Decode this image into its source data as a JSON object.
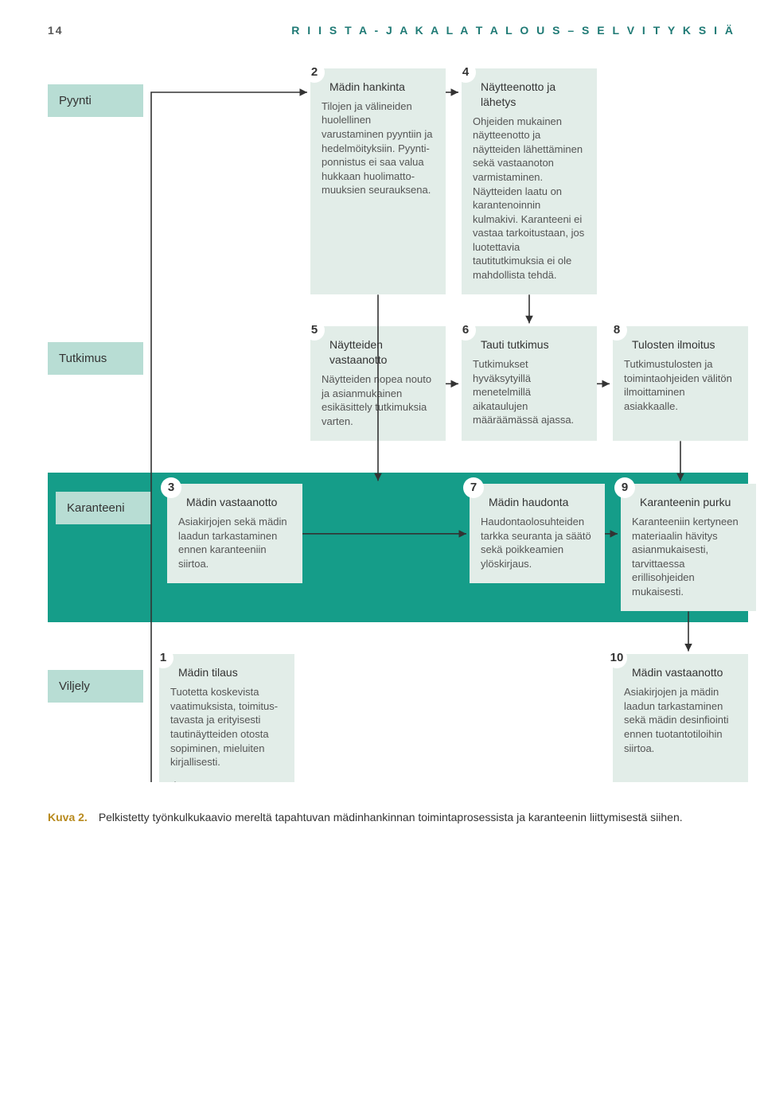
{
  "header": {
    "page_num": "14",
    "title": "R I I S T A -  J A  K A L A T A L O U S  –  S E L V I T Y K S I Ä"
  },
  "rows": {
    "pyynti": {
      "label": "Pyynti"
    },
    "tutkimus": {
      "label": "Tutkimus"
    },
    "karanteeni": {
      "label": "Karanteeni"
    },
    "viljely": {
      "label": "Viljely"
    }
  },
  "cards": {
    "c1": {
      "n": "1",
      "title": "Mädin tilaus",
      "body": "Tuotetta koskevista vaatimuksista, toimitus­tavasta ja erityisesti tautinäytteiden otosta sopiminen, mieluiten kirjallisesti."
    },
    "c2": {
      "n": "2",
      "title": "Mädin hankinta",
      "body": "Tilojen ja välineiden huolellinen varustaminen pyyntiin ja hedelmöityksiin. Pyynti­ponnistus ei saa valua hukkaan huolimatto­muuksien seurauksena."
    },
    "c3": {
      "n": "3",
      "title": "Mädin vastaan­otto",
      "body": "Asiakirjojen sekä mädin laadun tarkastaminen ennen karanteeniin siirtoa."
    },
    "c4": {
      "n": "4",
      "title": "Näytteenotto ja lähetys",
      "body": "Ohjeiden mukainen näytteenotto ja näytteiden lähettäminen sekä vastaanoton varmistaminen. Näytteiden laatu on karantenoinnin kulmakivi. Karanteeni ei vastaa tarkoitustaan, jos luotettavia tautitutkimuksia ei ole mahdollista tehdä."
    },
    "c5": {
      "n": "5",
      "title": "Näytteiden vastaanotto",
      "body": "Näytteiden nopea nouto ja asianmukainen esikäsittely tutkimuksia varten."
    },
    "c6": {
      "n": "6",
      "title": "Tauti tutkimus",
      "body": "Tutkimukset hyväksytyillä menetelmillä aikataulujen määräämässä ajassa."
    },
    "c7": {
      "n": "7",
      "title": "Mädin haudonta",
      "body": "Haudonta­olosuhteiden tarkka seuranta ja säätö sekä poikkeamien ylöskirjaus."
    },
    "c8": {
      "n": "8",
      "title": "Tulosten ilmoitus",
      "body": "Tutkimus­tulosten ja toiminta­ohjeiden välitön ilmoittaminen asiakkaalle."
    },
    "c9": {
      "n": "9",
      "title": "Karan­teenin purku",
      "body": "Karanteeniin kertyneen materiaalin hävitys asian­mukaisesti, tarvittaessa erillisohjeiden mukaisesti."
    },
    "c10": {
      "n": "10",
      "title": "Mädin vastaan­otto",
      "body": "Asiakirjojen ja mädin laadun tarkastaminen sekä mädin desinfiointi ennen tuotanto­tiloihin siirtoa."
    }
  },
  "caption": {
    "label": "Kuva 2.",
    "text": "Pelkistetty työnkulkukaavio mereltä tapahtuvan mädinhankinnan toimintaprosessista ja karanteenin liittymisestä siihen."
  },
  "colors": {
    "label_bg": "#b8ddd4",
    "card_bg": "#e2ede8",
    "band_bg": "#159d89",
    "header_color": "#1f7a75",
    "arrow": "#333333"
  }
}
